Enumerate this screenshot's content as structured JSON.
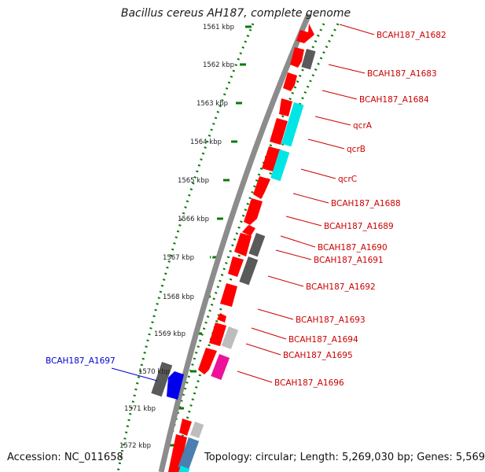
{
  "title": "Bacillus cereus AH187, complete genome",
  "footer": {
    "accession": "Accession: NC_011658",
    "summary": "Topology: circular; Length: 5,269,030 bp; Genes: 5,569"
  },
  "colors": {
    "backbone": "#8c8c8c",
    "tick_green": "#0a7a0a",
    "forward_label": "#cc0000",
    "reverse_label": "#0000cc",
    "gene_red": "#ff0000",
    "gene_dark_gray": "#5a5a5a",
    "gene_light_gray": "#bdbdbd",
    "gene_cyan": "#00e5e5",
    "gene_blue": "#0000ee",
    "gene_magenta": "#ee1199",
    "gene_steelblue": "#4a7fb0"
  },
  "scale_labels": [
    "1561 kbp",
    "1562 kbp",
    "1563 kbp",
    "1564 kbp",
    "1565 kbp",
    "1566 kbp",
    "1567 kbp",
    "1568 kbp",
    "1569 kbp",
    "1570 kbp",
    "1571 kbp",
    "1572 kbp"
  ],
  "gene_labels": {
    "forward": [
      "BCAH187_A1682",
      "BCAH187_A1683",
      "BCAH187_A1684",
      "qcrA",
      "qcrB",
      "qcrC",
      "BCAH187_A1688",
      "BCAH187_A1689",
      "BCAH187_A1690",
      "BCAH187_A1691",
      "BCAH187_A1692",
      "BCAH187_A1693",
      "BCAH187_A1694",
      "BCAH187_A1695",
      "BCAH187_A1696"
    ],
    "reverse": [
      "BCAH187_A1697"
    ]
  }
}
